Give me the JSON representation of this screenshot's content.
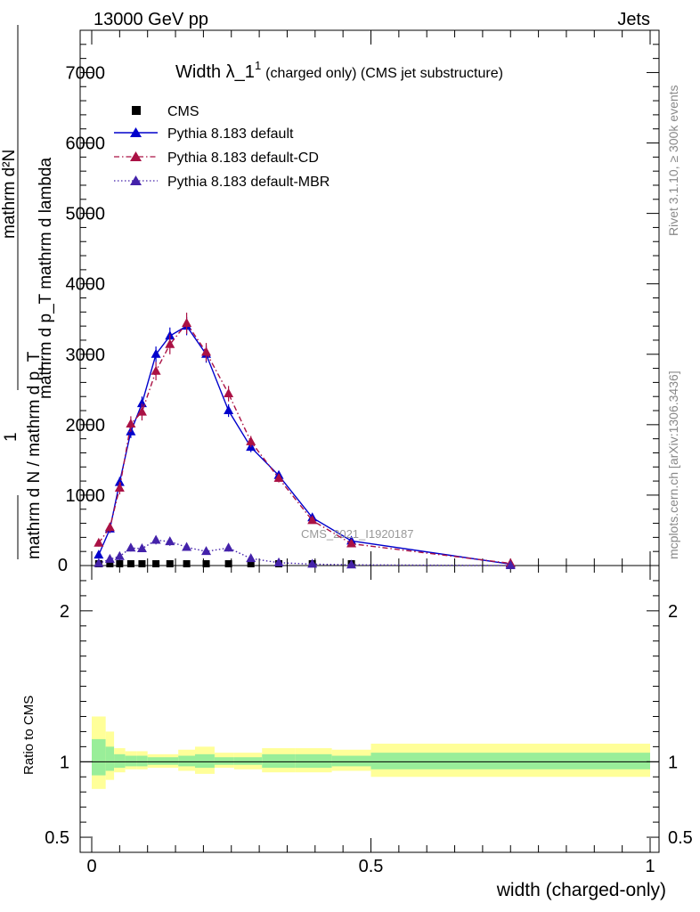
{
  "header": {
    "left": "13000 GeV pp",
    "right": "Jets"
  },
  "title": {
    "main": "Width λ_1",
    "sup": "1",
    "sub": "(charged only) (CMS jet substructure)"
  },
  "side_labels": {
    "rivet": "Rivet 3.1.10, ≥ 300k events",
    "mcplots": "mcplots.cern.ch [arXiv:1306.3436]"
  },
  "watermark": "CMS_2021_I1920187",
  "y_label": {
    "line1": "mathrm d²N",
    "line1_num": "1",
    "line2": "mathrm d p_T mathrm d lambda",
    "line3": "mathrm d N / mathrm d p_T"
  },
  "ratio_ylabel": "Ratio to CMS",
  "xlabel": "width (charged-only)",
  "chart_data": [
    {
      "type": "line",
      "panel": "main",
      "ylim": [
        0,
        7600
      ],
      "xlim": [
        -0.02,
        1.0
      ],
      "y_ticks": [
        1000,
        2000,
        3000,
        4000,
        5000,
        6000,
        7000
      ],
      "y_tick_labels": [
        "1000",
        "2000",
        "3000",
        "4000",
        "5000",
        "6000",
        "7000"
      ],
      "y_tick_labels_visible": [
        "1000",
        "2000",
        "3000",
        "4000",
        "5000",
        "6000",
        "7000"
      ],
      "y_zero_label": "0",
      "legend_placement": "top-left",
      "series": [
        {
          "name": "CMS",
          "style": "marker-square",
          "color": "#000000",
          "x": [
            0.0125,
            0.0325,
            0.05,
            0.07,
            0.09,
            0.115,
            0.14,
            0.17,
            0.205,
            0.245,
            0.285,
            0.335,
            0.395,
            0.465
          ],
          "y": [
            5,
            8,
            10,
            10,
            10,
            10,
            10,
            10,
            10,
            8,
            6,
            4,
            3,
            2
          ]
        },
        {
          "name": "Pythia 8.183 default",
          "style": "solid",
          "color": "#0000cc",
          "x": [
            0.0125,
            0.0325,
            0.05,
            0.07,
            0.09,
            0.115,
            0.14,
            0.17,
            0.205,
            0.245,
            0.285,
            0.335,
            0.395,
            0.465,
            0.75
          ],
          "y": [
            150,
            520,
            1180,
            1900,
            2300,
            3000,
            3260,
            3400,
            3000,
            2200,
            1680,
            1280,
            680,
            350,
            20
          ],
          "err": [
            40,
            60,
            80,
            90,
            100,
            110,
            120,
            130,
            120,
            90,
            70,
            60,
            40,
            25,
            10
          ]
        },
        {
          "name": "Pythia 8.183 default-CD",
          "style": "dash-dot",
          "color": "#aa1144",
          "x": [
            0.0125,
            0.0325,
            0.05,
            0.07,
            0.09,
            0.115,
            0.14,
            0.17,
            0.205,
            0.245,
            0.285,
            0.335,
            0.395,
            0.465,
            0.75
          ],
          "y": [
            320,
            540,
            1100,
            2010,
            2180,
            2760,
            3140,
            3440,
            3030,
            2440,
            1760,
            1240,
            640,
            310,
            30
          ],
          "err": [
            50,
            70,
            90,
            110,
            120,
            130,
            140,
            150,
            130,
            110,
            80,
            60,
            40,
            25,
            10
          ]
        },
        {
          "name": "Pythia 8.183 default-MBR",
          "style": "dotted",
          "color": "#4422aa",
          "x": [
            0.0125,
            0.0325,
            0.05,
            0.07,
            0.09,
            0.115,
            0.14,
            0.17,
            0.205,
            0.245,
            0.285,
            0.335,
            0.395,
            0.465,
            0.75
          ],
          "y": [
            30,
            90,
            130,
            250,
            240,
            360,
            340,
            260,
            200,
            250,
            100,
            40,
            20,
            10,
            0
          ],
          "err": [
            20,
            30,
            40,
            50,
            50,
            60,
            60,
            50,
            40,
            50,
            30,
            20,
            10,
            8,
            2
          ]
        }
      ]
    },
    {
      "type": "area",
      "panel": "ratio",
      "ylabel": "Ratio to CMS",
      "ylim": [
        0.4,
        2.3
      ],
      "y_ticks": [
        0.5,
        1,
        2
      ],
      "y_tick_labels": [
        "0.5",
        "1",
        "2"
      ],
      "x_ticks": [
        0,
        0.5,
        1
      ],
      "x_tick_labels": [
        "0",
        "0.5",
        "1"
      ],
      "bins": [
        {
          "lo": 0.0,
          "hi": 0.025,
          "inner": [
            0.91,
            1.15
          ],
          "outer": [
            0.82,
            1.3
          ]
        },
        {
          "lo": 0.025,
          "hi": 0.04,
          "inner": [
            0.94,
            1.1
          ],
          "outer": [
            0.88,
            1.2
          ]
        },
        {
          "lo": 0.04,
          "hi": 0.06,
          "inner": [
            0.96,
            1.05
          ],
          "outer": [
            0.93,
            1.09
          ]
        },
        {
          "lo": 0.06,
          "hi": 0.08,
          "inner": [
            0.97,
            1.04
          ],
          "outer": [
            0.95,
            1.07
          ]
        },
        {
          "lo": 0.08,
          "hi": 0.1,
          "inner": [
            0.97,
            1.04
          ],
          "outer": [
            0.95,
            1.07
          ]
        },
        {
          "lo": 0.1,
          "hi": 0.13,
          "inner": [
            0.98,
            1.03
          ],
          "outer": [
            0.96,
            1.05
          ]
        },
        {
          "lo": 0.13,
          "hi": 0.155,
          "inner": [
            0.98,
            1.03
          ],
          "outer": [
            0.96,
            1.05
          ]
        },
        {
          "lo": 0.155,
          "hi": 0.185,
          "inner": [
            0.97,
            1.04
          ],
          "outer": [
            0.94,
            1.08
          ]
        },
        {
          "lo": 0.185,
          "hi": 0.22,
          "inner": [
            0.96,
            1.05
          ],
          "outer": [
            0.92,
            1.1
          ]
        },
        {
          "lo": 0.22,
          "hi": 0.255,
          "inner": [
            0.98,
            1.03
          ],
          "outer": [
            0.96,
            1.06
          ]
        },
        {
          "lo": 0.255,
          "hi": 0.305,
          "inner": [
            0.98,
            1.03
          ],
          "outer": [
            0.95,
            1.06
          ]
        },
        {
          "lo": 0.305,
          "hi": 0.365,
          "inner": [
            0.96,
            1.05
          ],
          "outer": [
            0.93,
            1.09
          ]
        },
        {
          "lo": 0.365,
          "hi": 0.43,
          "inner": [
            0.96,
            1.05
          ],
          "outer": [
            0.93,
            1.09
          ]
        },
        {
          "lo": 0.43,
          "hi": 0.5,
          "inner": [
            0.97,
            1.04
          ],
          "outer": [
            0.94,
            1.08
          ]
        },
        {
          "lo": 0.5,
          "hi": 1.0,
          "inner": [
            0.95,
            1.06
          ],
          "outer": [
            0.9,
            1.12
          ]
        }
      ],
      "colors": {
        "inner": "#99ee99",
        "outer": "#ffff99"
      }
    }
  ]
}
